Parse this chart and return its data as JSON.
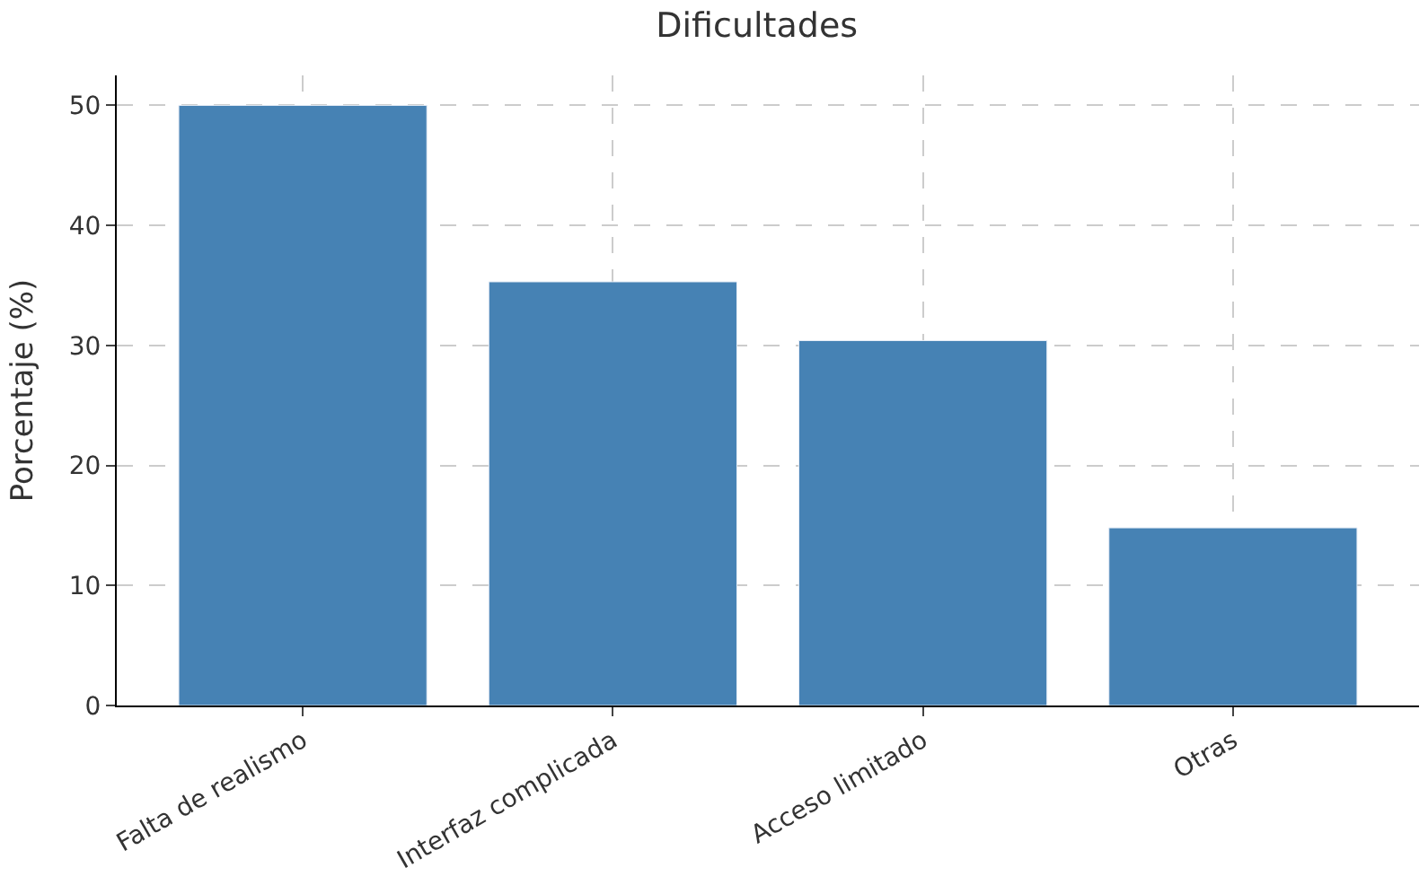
{
  "chart_data": {
    "type": "bar",
    "title": "Dificultades",
    "ylabel": "Porcentaje (%)",
    "categories": [
      "Falta de realismo",
      "Interfaz complicada",
      "Acceso limitado",
      "Otras"
    ],
    "values": [
      50,
      35.3,
      30.4,
      14.8
    ],
    "color": "#4682b4",
    "ylim": [
      0,
      52.5
    ],
    "yticks": [
      0,
      10,
      20,
      30,
      40,
      50
    ],
    "grid": true
  }
}
